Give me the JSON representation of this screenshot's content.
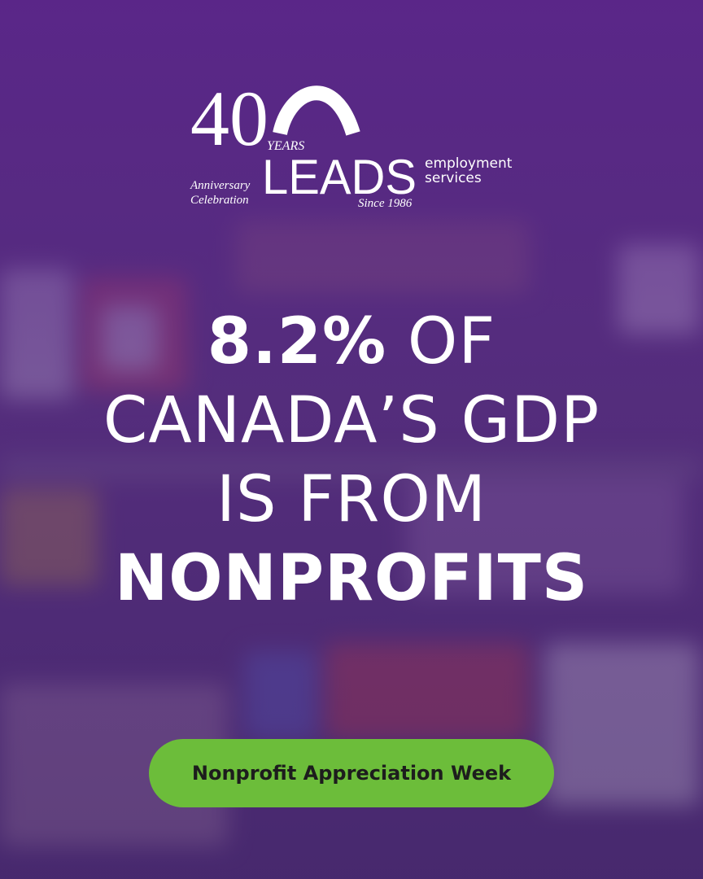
{
  "logo": {
    "number": "40",
    "years": "YEARS",
    "name": "LEADS",
    "line1": "employment",
    "line2": "services",
    "anniversary": "Anniversary",
    "celebration": "Celebration",
    "since": "Since 1986"
  },
  "headline": {
    "stat": "8.2%",
    "of": "OF",
    "line2": "CANADA’S GDP",
    "line3": "IS FROM",
    "line4": "NONPROFITS"
  },
  "button": {
    "label": "Nonprofit Appreciation Week"
  }
}
